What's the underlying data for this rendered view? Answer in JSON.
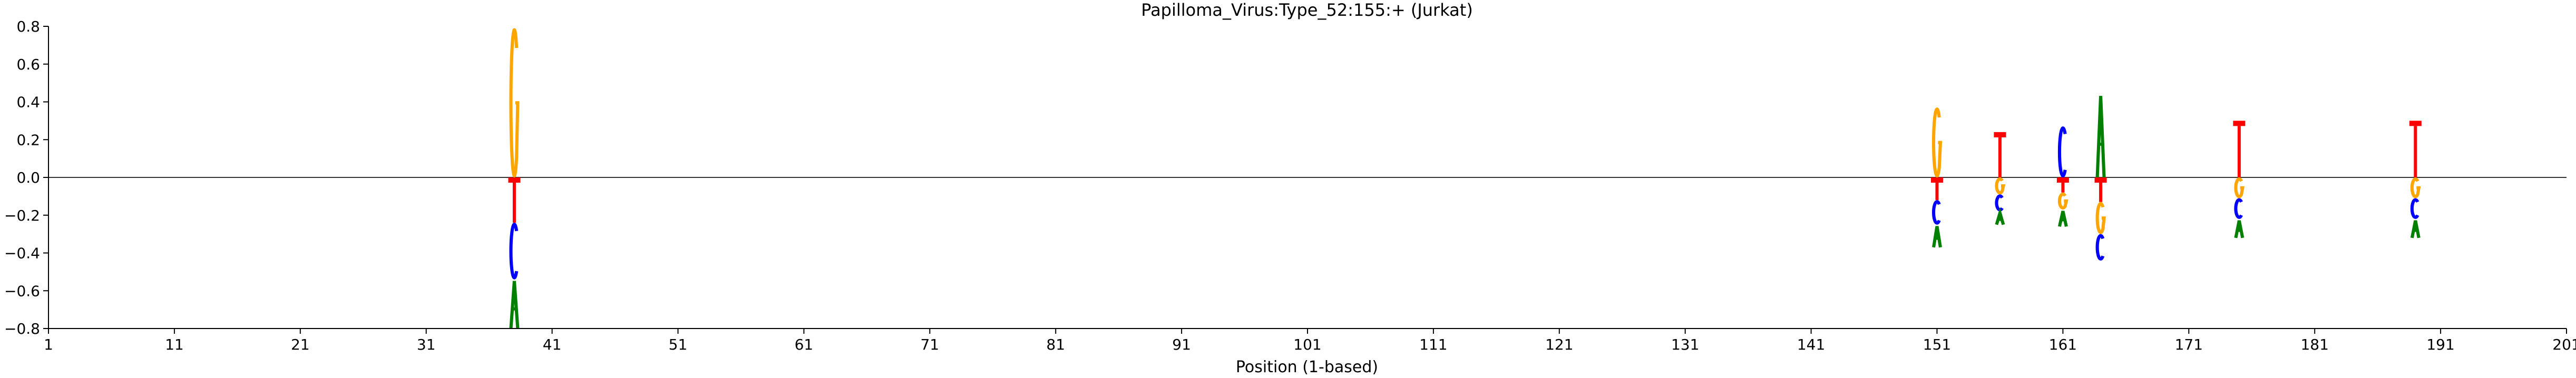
{
  "chart_data": {
    "type": "sequence-logo",
    "title": "Papilloma_Virus:Type_52:155:+  (Jurkat)",
    "xlabel": "Position (1-based)",
    "ylabel": "",
    "xlim": [
      1,
      201
    ],
    "ylim": [
      -0.8,
      0.8
    ],
    "xticks": [
      "1",
      "11",
      "21",
      "31",
      "41",
      "51",
      "61",
      "71",
      "81",
      "91",
      "101",
      "111",
      "121",
      "131",
      "141",
      "151",
      "161",
      "171",
      "181",
      "191",
      "201"
    ],
    "yticks": [
      "−0.8",
      "−0.6",
      "−0.4",
      "−0.2",
      "0.0",
      "0.2",
      "0.4",
      "0.6",
      "0.8"
    ],
    "colors": {
      "A": "#008000",
      "C": "#0000ff",
      "G": "#ffa500",
      "T": "#ff0000"
    },
    "positions": [
      {
        "pos": 38,
        "up": [
          {
            "base": "G",
            "height": 0.79
          }
        ],
        "down": [
          {
            "base": "T",
            "height": 0.24
          },
          {
            "base": "C",
            "height": 0.3
          },
          {
            "base": "A",
            "height": 0.26
          }
        ]
      },
      {
        "pos": 151,
        "up": [
          {
            "base": "G",
            "height": 0.37
          }
        ],
        "down": [
          {
            "base": "T",
            "height": 0.12
          },
          {
            "base": "C",
            "height": 0.13
          },
          {
            "base": "A",
            "height": 0.12
          }
        ]
      },
      {
        "pos": 156,
        "up": [
          {
            "base": "T",
            "height": 0.24
          }
        ],
        "down": [
          {
            "base": "G",
            "height": 0.09
          },
          {
            "base": "C",
            "height": 0.09
          },
          {
            "base": "A",
            "height": 0.07
          }
        ]
      },
      {
        "pos": 161,
        "up": [
          {
            "base": "C",
            "height": 0.27
          }
        ],
        "down": [
          {
            "base": "T",
            "height": 0.08
          },
          {
            "base": "G",
            "height": 0.09
          },
          {
            "base": "A",
            "height": 0.09
          }
        ]
      },
      {
        "pos": 164,
        "up": [
          {
            "base": "A",
            "height": 0.44
          }
        ],
        "down": [
          {
            "base": "T",
            "height": 0.13
          },
          {
            "base": "G",
            "height": 0.17
          },
          {
            "base": "C",
            "height": 0.14
          }
        ]
      },
      {
        "pos": 175,
        "up": [
          {
            "base": "T",
            "height": 0.3
          }
        ],
        "down": [
          {
            "base": "G",
            "height": 0.11
          },
          {
            "base": "C",
            "height": 0.11
          },
          {
            "base": "A",
            "height": 0.1
          }
        ]
      },
      {
        "pos": 189,
        "up": [
          {
            "base": "T",
            "height": 0.3
          }
        ],
        "down": [
          {
            "base": "G",
            "height": 0.11
          },
          {
            "base": "C",
            "height": 0.11
          },
          {
            "base": "A",
            "height": 0.1
          }
        ]
      }
    ]
  }
}
